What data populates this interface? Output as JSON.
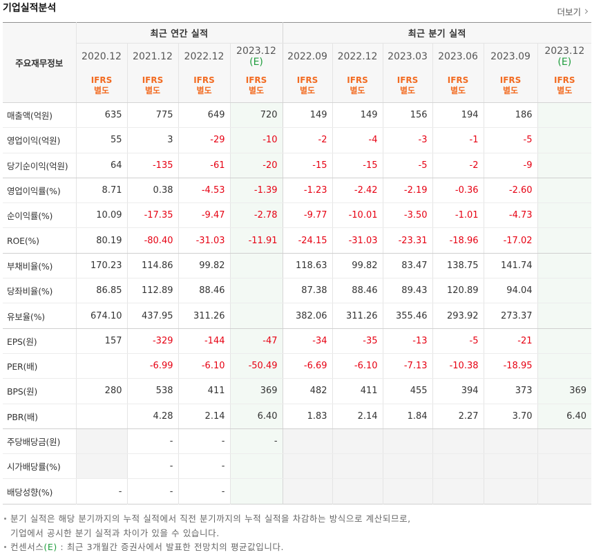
{
  "title": "기업실적분석",
  "more_link": {
    "label": "더보기",
    "icon": "chevron-right-icon"
  },
  "colors": {
    "negative": "#e60012",
    "basis": "#f26b21",
    "estimate": "#1f9d3d",
    "estimate_bg": "#f3f9f4",
    "na_bg": "#f4f4f4"
  },
  "table": {
    "corner_label": "주요재무정보",
    "annual": {
      "label": "최근 연간 실적",
      "periods": [
        {
          "period": "2020.12",
          "basis": "IFRS",
          "basis_sub": "별도"
        },
        {
          "period": "2021.12",
          "basis": "IFRS",
          "basis_sub": "별도"
        },
        {
          "period": "2022.12",
          "basis": "IFRS",
          "basis_sub": "별도"
        },
        {
          "period": "2023.12",
          "estimate": "(E)",
          "basis": "IFRS",
          "basis_sub": "별도"
        }
      ]
    },
    "quarter": {
      "label": "최근 분기 실적",
      "periods": [
        {
          "period": "2022.09",
          "basis": "IFRS",
          "basis_sub": "별도"
        },
        {
          "period": "2022.12",
          "basis": "IFRS",
          "basis_sub": "별도"
        },
        {
          "period": "2023.03",
          "basis": "IFRS",
          "basis_sub": "별도"
        },
        {
          "period": "2023.06",
          "basis": "IFRS",
          "basis_sub": "별도"
        },
        {
          "period": "2023.09",
          "basis": "IFRS",
          "basis_sub": "별도"
        },
        {
          "period": "2023.12",
          "estimate": "(E)",
          "basis": "IFRS",
          "basis_sub": "별도"
        }
      ]
    },
    "groups": [
      [
        {
          "label": "매출액(억원)",
          "annual": [
            "635",
            "775",
            "649",
            "720"
          ],
          "quarter": [
            "149",
            "149",
            "156",
            "194",
            "186",
            ""
          ]
        },
        {
          "label": "영업이익(억원)",
          "annual": [
            "55",
            "3",
            "-29",
            "-10"
          ],
          "quarter": [
            "-2",
            "-4",
            "-3",
            "-1",
            "-5",
            ""
          ]
        },
        {
          "label": "당기순이익(억원)",
          "annual": [
            "64",
            "-135",
            "-61",
            "-20"
          ],
          "quarter": [
            "-15",
            "-15",
            "-5",
            "-2",
            "-9",
            ""
          ]
        }
      ],
      [
        {
          "label": "영업이익률(%)",
          "annual": [
            "8.71",
            "0.38",
            "-4.53",
            "-1.39"
          ],
          "quarter": [
            "-1.23",
            "-2.42",
            "-2.19",
            "-0.36",
            "-2.60",
            ""
          ]
        },
        {
          "label": "순이익률(%)",
          "annual": [
            "10.09",
            "-17.35",
            "-9.47",
            "-2.78"
          ],
          "quarter": [
            "-9.77",
            "-10.01",
            "-3.50",
            "-1.01",
            "-4.73",
            ""
          ]
        },
        {
          "label": "ROE(%)",
          "annual": [
            "80.19",
            "-80.40",
            "-31.03",
            "-11.91"
          ],
          "quarter": [
            "-24.15",
            "-31.03",
            "-23.31",
            "-18.96",
            "-17.02",
            ""
          ]
        }
      ],
      [
        {
          "label": "부채비율(%)",
          "annual": [
            "170.23",
            "114.86",
            "99.82",
            ""
          ],
          "quarter": [
            "118.63",
            "99.82",
            "83.47",
            "138.75",
            "141.74",
            ""
          ]
        },
        {
          "label": "당좌비율(%)",
          "annual": [
            "86.85",
            "112.89",
            "88.46",
            ""
          ],
          "quarter": [
            "87.38",
            "88.46",
            "89.43",
            "120.89",
            "94.04",
            ""
          ]
        },
        {
          "label": "유보율(%)",
          "annual": [
            "674.10",
            "437.95",
            "311.26",
            ""
          ],
          "quarter": [
            "382.06",
            "311.26",
            "355.46",
            "293.92",
            "273.37",
            ""
          ]
        }
      ],
      [
        {
          "label": "EPS(원)",
          "annual": [
            "157",
            "-329",
            "-144",
            "-47"
          ],
          "quarter": [
            "-34",
            "-35",
            "-13",
            "-5",
            "-21",
            ""
          ]
        },
        {
          "label": "PER(배)",
          "annual": [
            "",
            "-6.99",
            "-6.10",
            "-50.49"
          ],
          "quarter": [
            "-6.69",
            "-6.10",
            "-7.13",
            "-10.38",
            "-18.95",
            ""
          ]
        },
        {
          "label": "BPS(원)",
          "annual": [
            "280",
            "538",
            "411",
            "369"
          ],
          "quarter": [
            "482",
            "411",
            "455",
            "394",
            "373",
            "369"
          ]
        },
        {
          "label": "PBR(배)",
          "annual": [
            "",
            "4.28",
            "2.14",
            "6.40"
          ],
          "quarter": [
            "1.83",
            "2.14",
            "1.84",
            "2.27",
            "3.70",
            "6.40"
          ]
        }
      ],
      [
        {
          "label": "주당배당금(원)",
          "annual": [
            null,
            "-",
            "-",
            "-"
          ],
          "quarter": [
            null,
            null,
            null,
            null,
            null,
            null
          ]
        },
        {
          "label": "시가배당률(%)",
          "annual": [
            null,
            "-",
            "-",
            ""
          ],
          "quarter": [
            null,
            null,
            null,
            null,
            null,
            null
          ]
        },
        {
          "label": "배당성향(%)",
          "annual": [
            "-",
            "-",
            "-",
            ""
          ],
          "quarter": [
            null,
            null,
            null,
            null,
            null,
            null
          ]
        }
      ]
    ]
  },
  "notes": {
    "quarterly": [
      "분기 실적은 해당 분기까지의 누적 실적에서 직전 분기까지의 누적 실적을 차감하는 방식으로 계산되므로,",
      "기업에서 공시한 분기 실적과 차이가 있을 수 있습니다."
    ],
    "consensus": {
      "term": "컨센서스",
      "mark": "(E)",
      "text": " : 최근 3개월간 증권사에서 발표한 전망치의 평균값입니다."
    }
  }
}
